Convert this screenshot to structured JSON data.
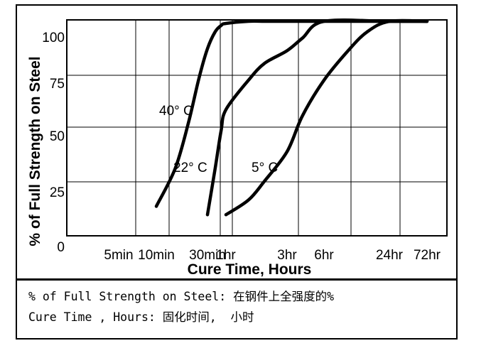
{
  "chart_data": {
    "type": "line",
    "ylabel": "% of Full Strength on Steel",
    "xlabel": "Cure Time, Hours",
    "x_ticks": [
      "5min",
      "10min",
      "30min",
      "1hr",
      "3hr",
      "6hr",
      "24hr",
      "72hr"
    ],
    "y_ticks": [
      "0",
      "25",
      "50",
      "75",
      "100"
    ],
    "ylim": [
      0,
      100
    ],
    "x_scale": "log",
    "grid": true,
    "series": [
      {
        "name": "40° C",
        "x": [
          "10min",
          "15min",
          "20min",
          "25min",
          "30min",
          "40min",
          "50min",
          "1hr",
          "1.5hr",
          "2hr",
          "3hr",
          "6hr",
          "24hr",
          "72hr"
        ],
        "values": [
          12,
          30,
          52,
          73,
          87,
          95,
          98,
          99,
          100,
          100,
          100,
          100,
          100,
          100
        ]
      },
      {
        "name": "22° C",
        "x": [
          "30min",
          "40min",
          "50min",
          "1hr",
          "1.5hr",
          "2hr",
          "3hr",
          "4hr",
          "6hr",
          "24hr",
          "72hr"
        ],
        "values": [
          8,
          30,
          48,
          58,
          72,
          80,
          86,
          92,
          100,
          100,
          100
        ]
      },
      {
        "name": "5° C",
        "x": [
          "1hr",
          "1.5hr",
          "2hr",
          "3hr",
          "4hr",
          "6hr",
          "10hr",
          "15hr",
          "24hr",
          "72hr"
        ],
        "values": [
          8,
          15,
          24,
          38,
          55,
          72,
          86,
          95,
          100,
          100
        ]
      }
    ]
  },
  "caption": {
    "line1": "% of Full Strength on Steel: 在钢件上全强度的%",
    "line2": "Cure Time , Hours: 固化时间,  小时"
  }
}
